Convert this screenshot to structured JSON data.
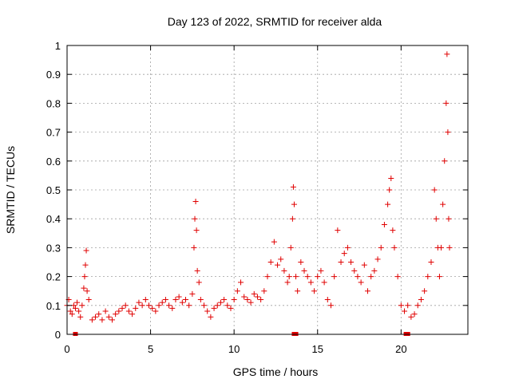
{
  "chart_data": {
    "type": "scatter",
    "title": "Day 123 of 2022, SRMTID for receiver alda",
    "xlabel": "GPS time / hours",
    "ylabel": "SRMTID / TECUs",
    "xlim": [
      0,
      24
    ],
    "ylim": [
      0,
      1
    ],
    "xticks": [
      0,
      5,
      10,
      15,
      20
    ],
    "xtick_labels": [
      "0",
      "5",
      "10",
      "15",
      "20"
    ],
    "yticks": [
      0,
      0.1,
      0.2,
      0.3,
      0.4,
      0.5,
      0.6,
      0.7,
      0.8,
      0.9,
      1
    ],
    "ytick_labels": [
      "0",
      "0.1",
      "0.2",
      "0.3",
      "0.4",
      "0.5",
      "0.6",
      "0.7",
      "0.8",
      "0.9",
      "1"
    ],
    "grid": true,
    "marker": "plus",
    "series_color": "#e00000",
    "series": [
      {
        "name": "SRMTID",
        "x": [
          0.0,
          0.1,
          0.2,
          0.3,
          0.4,
          0.5,
          0.6,
          0.7,
          0.8,
          0.9,
          1.0,
          1.05,
          1.1,
          1.15,
          1.2,
          1.3,
          1.5,
          1.7,
          1.9,
          2.1,
          2.3,
          2.5,
          2.7,
          2.9,
          3.1,
          3.3,
          3.5,
          3.7,
          3.9,
          4.1,
          4.3,
          4.5,
          4.7,
          4.9,
          5.1,
          5.3,
          5.5,
          5.7,
          5.9,
          6.1,
          6.3,
          6.5,
          6.7,
          6.9,
          7.1,
          7.3,
          7.5,
          7.6,
          7.65,
          7.7,
          7.75,
          7.8,
          7.9,
          8.0,
          8.2,
          8.4,
          8.6,
          8.8,
          9.0,
          9.2,
          9.4,
          9.6,
          9.8,
          10.0,
          10.2,
          10.4,
          10.6,
          10.8,
          11.0,
          11.2,
          11.4,
          11.6,
          11.8,
          12.0,
          12.2,
          12.4,
          12.6,
          12.8,
          13.0,
          13.2,
          13.3,
          13.4,
          13.5,
          13.55,
          13.6,
          13.7,
          13.8,
          14.0,
          14.2,
          14.4,
          14.6,
          14.8,
          15.0,
          15.2,
          15.4,
          15.6,
          15.8,
          16.0,
          16.2,
          16.4,
          16.6,
          16.8,
          17.0,
          17.2,
          17.4,
          17.6,
          17.8,
          18.0,
          18.2,
          18.4,
          18.6,
          18.8,
          19.0,
          19.2,
          19.3,
          19.4,
          19.5,
          19.6,
          19.8,
          20.0,
          20.2,
          20.4,
          20.6,
          20.8,
          21.0,
          21.2,
          21.4,
          21.6,
          21.8,
          22.0,
          22.1,
          22.2,
          22.3,
          22.4,
          22.5,
          22.6,
          22.7,
          22.75,
          22.8,
          22.85,
          22.9
        ],
        "y": [
          0.1,
          0.12,
          0.08,
          0.07,
          0.1,
          0.09,
          0.11,
          0.08,
          0.06,
          0.1,
          0.16,
          0.2,
          0.24,
          0.29,
          0.15,
          0.12,
          0.05,
          0.06,
          0.07,
          0.05,
          0.08,
          0.06,
          0.05,
          0.07,
          0.08,
          0.09,
          0.1,
          0.08,
          0.07,
          0.09,
          0.11,
          0.1,
          0.12,
          0.1,
          0.09,
          0.08,
          0.1,
          0.11,
          0.12,
          0.1,
          0.09,
          0.12,
          0.13,
          0.11,
          0.12,
          0.1,
          0.14,
          0.3,
          0.4,
          0.46,
          0.36,
          0.22,
          0.18,
          0.12,
          0.1,
          0.08,
          0.06,
          0.09,
          0.1,
          0.11,
          0.12,
          0.1,
          0.09,
          0.12,
          0.15,
          0.18,
          0.13,
          0.12,
          0.11,
          0.14,
          0.13,
          0.12,
          0.15,
          0.2,
          0.25,
          0.32,
          0.24,
          0.26,
          0.22,
          0.18,
          0.2,
          0.3,
          0.4,
          0.51,
          0.45,
          0.2,
          0.15,
          0.25,
          0.22,
          0.2,
          0.18,
          0.15,
          0.2,
          0.22,
          0.18,
          0.12,
          0.1,
          0.2,
          0.36,
          0.25,
          0.28,
          0.3,
          0.25,
          0.22,
          0.2,
          0.18,
          0.24,
          0.15,
          0.2,
          0.22,
          0.26,
          0.3,
          0.38,
          0.45,
          0.5,
          0.54,
          0.36,
          0.3,
          0.2,
          0.1,
          0.08,
          0.1,
          0.06,
          0.07,
          0.1,
          0.12,
          0.15,
          0.2,
          0.25,
          0.5,
          0.4,
          0.3,
          0.2,
          0.3,
          0.45,
          0.6,
          0.8,
          0.97,
          0.7,
          0.4,
          0.3
        ],
        "zero_markers_x": [
          0.5,
          13.6,
          13.7,
          20.3,
          20.4
        ]
      }
    ]
  }
}
